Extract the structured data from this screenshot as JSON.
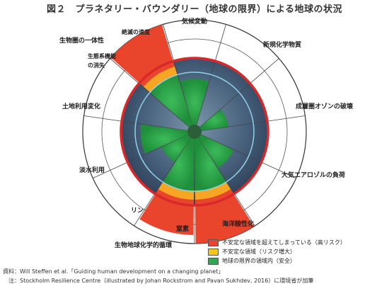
{
  "title": "図２　プラネタリー・バウンダリー（地球の限界）による地球の状況",
  "chart_data": {
    "type": "radial",
    "segments": [
      {
        "label": "気候変動",
        "status": "uncertain",
        "level": 0.82
      },
      {
        "label": "新規化学物質",
        "status": "unknown",
        "level": null
      },
      {
        "label": "成層圏オゾンの破壊",
        "status": "safe",
        "level": 0.35
      },
      {
        "label": "大気エアロゾルの負荷",
        "status": "unknown",
        "level": null
      },
      {
        "label": "海洋酸性化",
        "status": "safe",
        "level": 0.58
      },
      {
        "label": "窒素",
        "status": "high",
        "level": 1.45
      },
      {
        "label": "リン",
        "status": "high",
        "level": 1.35
      },
      {
        "label": "淡水利用",
        "status": "safe",
        "level": 0.4
      },
      {
        "label": "土地利用変化",
        "status": "uncertain",
        "level": 0.86
      },
      {
        "label": "生態系機能の消失",
        "status": "unknown",
        "level": null
      },
      {
        "label": "絶滅の速度",
        "status": "high",
        "level": 1.45
      }
    ],
    "group_labels": {
      "biosphere": "生物圏の一体性",
      "biogeochemical": "生物地球化学的循環"
    },
    "legend": [
      {
        "label": "不安定な領域を超えてしまっている（高リスク）",
        "color": "#e8452c"
      },
      {
        "label": "不安定な領域（リスク増大）",
        "color": "#f5c518"
      },
      {
        "label": "地球の限界の領域内（安全）",
        "color": "#2fa84f"
      }
    ],
    "colors": {
      "high": "#e8452c",
      "uncertain": "#f6a623",
      "safe": "#2fa84f",
      "earth": "#4a6f8c"
    }
  },
  "source_lines": [
    "資料：Will Steffen et al.「Guiding human development on a changing planet」",
    "　注：Stockholm Resilience Centre（illustrated by Johan Rockstrom and Pavan Sukhdev, 2016）に環境省が加筆"
  ]
}
